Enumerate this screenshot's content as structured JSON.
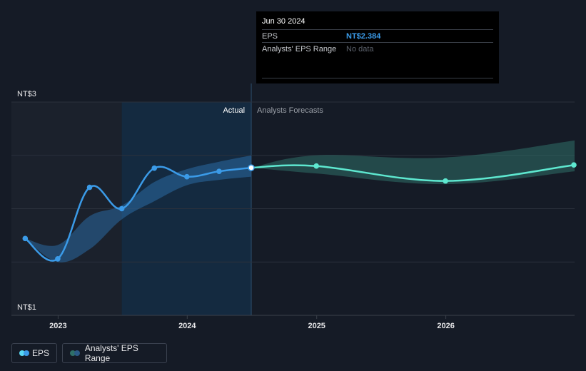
{
  "chart_data": {
    "type": "line",
    "y_tick_labels": [
      "NT$3",
      "NT$1"
    ],
    "x_tick_labels": [
      "2023",
      "2024",
      "2025",
      "2026"
    ],
    "ylim": [
      1,
      3
    ],
    "xlim": [
      "2022-08-22",
      "2026-12-31"
    ],
    "section_labels": {
      "actual": "Actual",
      "forecast": "Analysts Forecasts"
    },
    "actual_eps": {
      "name": "EPS",
      "color": "#3b9be8",
      "points": [
        {
          "date": "2022-09-30",
          "value": 1.72
        },
        {
          "date": "2022-12-31",
          "value": 1.53
        },
        {
          "date": "2023-03-31",
          "value": 2.2
        },
        {
          "date": "2023-06-30",
          "value": 2.0
        },
        {
          "date": "2023-09-30",
          "value": 2.38
        },
        {
          "date": "2023-12-31",
          "value": 2.3
        },
        {
          "date": "2024-03-31",
          "value": 2.35
        },
        {
          "date": "2024-06-30",
          "value": 2.384
        }
      ]
    },
    "actual_range": {
      "color": "#2a6aa3",
      "upper": [
        {
          "date": "2022-09-30",
          "value": 1.72
        },
        {
          "date": "2022-12-31",
          "value": 1.66
        },
        {
          "date": "2023-03-31",
          "value": 1.93
        },
        {
          "date": "2023-06-30",
          "value": 2.03
        },
        {
          "date": "2023-09-30",
          "value": 2.25
        },
        {
          "date": "2023-12-31",
          "value": 2.37
        },
        {
          "date": "2024-03-31",
          "value": 2.44
        },
        {
          "date": "2024-06-30",
          "value": 2.5
        }
      ],
      "lower": [
        {
          "date": "2022-09-30",
          "value": 1.72
        },
        {
          "date": "2022-12-31",
          "value": 1.5
        },
        {
          "date": "2023-03-31",
          "value": 1.62
        },
        {
          "date": "2023-06-30",
          "value": 1.9
        },
        {
          "date": "2023-09-30",
          "value": 2.07
        },
        {
          "date": "2023-12-31",
          "value": 2.22
        },
        {
          "date": "2024-03-31",
          "value": 2.27
        },
        {
          "date": "2024-06-30",
          "value": 2.3
        }
      ]
    },
    "forecast_eps": {
      "name": "EPS",
      "color": "#5ee8d0",
      "points": [
        {
          "date": "2024-06-30",
          "value": 2.384
        },
        {
          "date": "2024-12-31",
          "value": 2.4
        },
        {
          "date": "2025-12-31",
          "value": 2.26
        },
        {
          "date": "2026-12-31",
          "value": 2.41
        }
      ]
    },
    "forecast_range": {
      "color": "#2f6f68",
      "upper": [
        {
          "date": "2024-06-30",
          "value": 2.384
        },
        {
          "date": "2024-12-31",
          "value": 2.5
        },
        {
          "date": "2025-12-31",
          "value": 2.48
        },
        {
          "date": "2026-12-31",
          "value": 2.64
        }
      ],
      "lower": [
        {
          "date": "2024-06-30",
          "value": 2.384
        },
        {
          "date": "2024-12-31",
          "value": 2.33
        },
        {
          "date": "2025-12-31",
          "value": 2.23
        },
        {
          "date": "2026-12-31",
          "value": 2.35
        }
      ]
    },
    "grid": true
  },
  "tooltip": {
    "date": "Jun 30 2024",
    "eps_label": "EPS",
    "eps_value": "NT$2.384",
    "range_label": "Analysts' EPS Range",
    "range_value": "No data"
  },
  "legend": {
    "eps_label": "EPS",
    "range_label": "Analysts' EPS Range",
    "eps_colors": [
      "#59d8f3",
      "#3b9be8"
    ],
    "range_colors": [
      "#2f6f68",
      "#2a5a86"
    ]
  },
  "colors": {
    "background": "#151b26",
    "past_shade": "#1b212c",
    "actual_shade": "#142a40",
    "tooltip_eps_value": "#3b9be8"
  }
}
